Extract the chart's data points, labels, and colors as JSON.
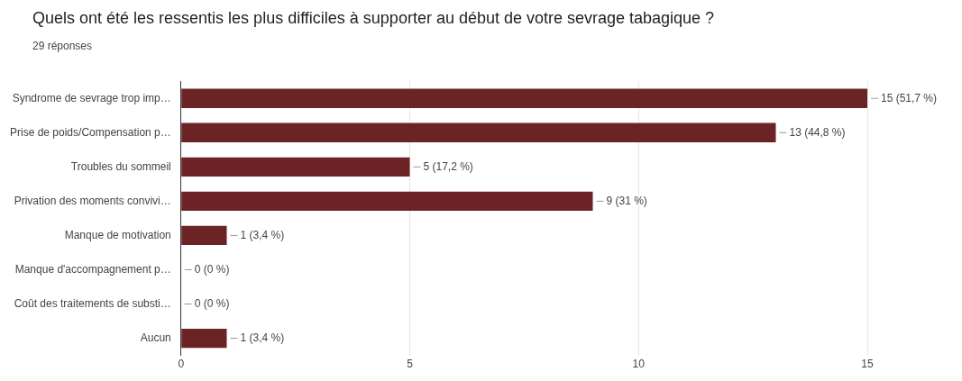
{
  "chart_data": {
    "type": "bar",
    "orientation": "horizontal",
    "title": "Quels ont été les ressentis les plus difficiles à supporter au début de votre sevrage tabagique ?",
    "subtitle": "29 réponses",
    "categories": [
      "Syndrome de sevrage trop imp…",
      "Prise de poids/Compensation p…",
      "Troubles du sommeil",
      "Privation des moments convivi…",
      "Manque de motivation",
      "Manque d'accompagnement p…",
      "Coût des traitements de substi…",
      "Aucun"
    ],
    "values": [
      15,
      13,
      5,
      9,
      1,
      0,
      0,
      1
    ],
    "value_labels": [
      "15 (51,7 %)",
      "13 (44,8 %)",
      "5 (17,2 %)",
      "9 (31 %)",
      "1 (3,4 %)",
      "0 (0 %)",
      "0 (0 %)",
      "1 (3,4 %)"
    ],
    "color": "#6b2326",
    "xlim": [
      0,
      15
    ],
    "xticks": [
      0,
      5,
      10,
      15
    ],
    "grid": "x",
    "legend": false
  }
}
